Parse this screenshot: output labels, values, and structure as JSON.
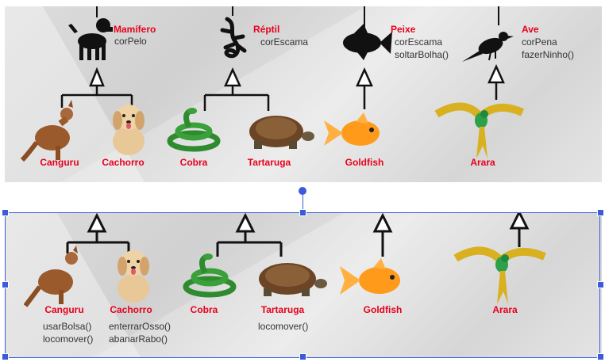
{
  "top": {
    "classes": [
      {
        "name": "Mamífero",
        "attrs": [
          "corPelo"
        ],
        "icon": "dog-silhouette-icon"
      },
      {
        "name": "Réptil",
        "attrs": [
          "corEscama"
        ],
        "icon": "lizard-silhouette-icon"
      },
      {
        "name": "Peixe",
        "attrs": [
          "corEscama",
          "soltarBolha()"
        ],
        "icon": "fish-silhouette-icon"
      },
      {
        "name": "Ave",
        "attrs": [
          "corPena",
          "fazerNinho()"
        ],
        "icon": "bird-silhouette-icon"
      }
    ],
    "animals": [
      "Canguru",
      "Cachorro",
      "Cobra",
      "Tartaruga",
      "Goldfish",
      "Arara"
    ]
  },
  "bottom": {
    "animals": [
      {
        "name": "Canguru",
        "methods": [
          "usarBolsa()",
          "locomover()"
        ]
      },
      {
        "name": "Cachorro",
        "methods": [
          "enterrarOsso()",
          "abanarRabo()"
        ]
      },
      {
        "name": "Cobra",
        "methods": []
      },
      {
        "name": "Tartaruga",
        "methods": [
          "locomover()"
        ]
      },
      {
        "name": "Goldfish",
        "methods": []
      },
      {
        "name": "Arara",
        "methods": []
      }
    ]
  },
  "colors": {
    "label": "#e8001c",
    "selection": "#3b5bdb",
    "line": "#111111"
  }
}
